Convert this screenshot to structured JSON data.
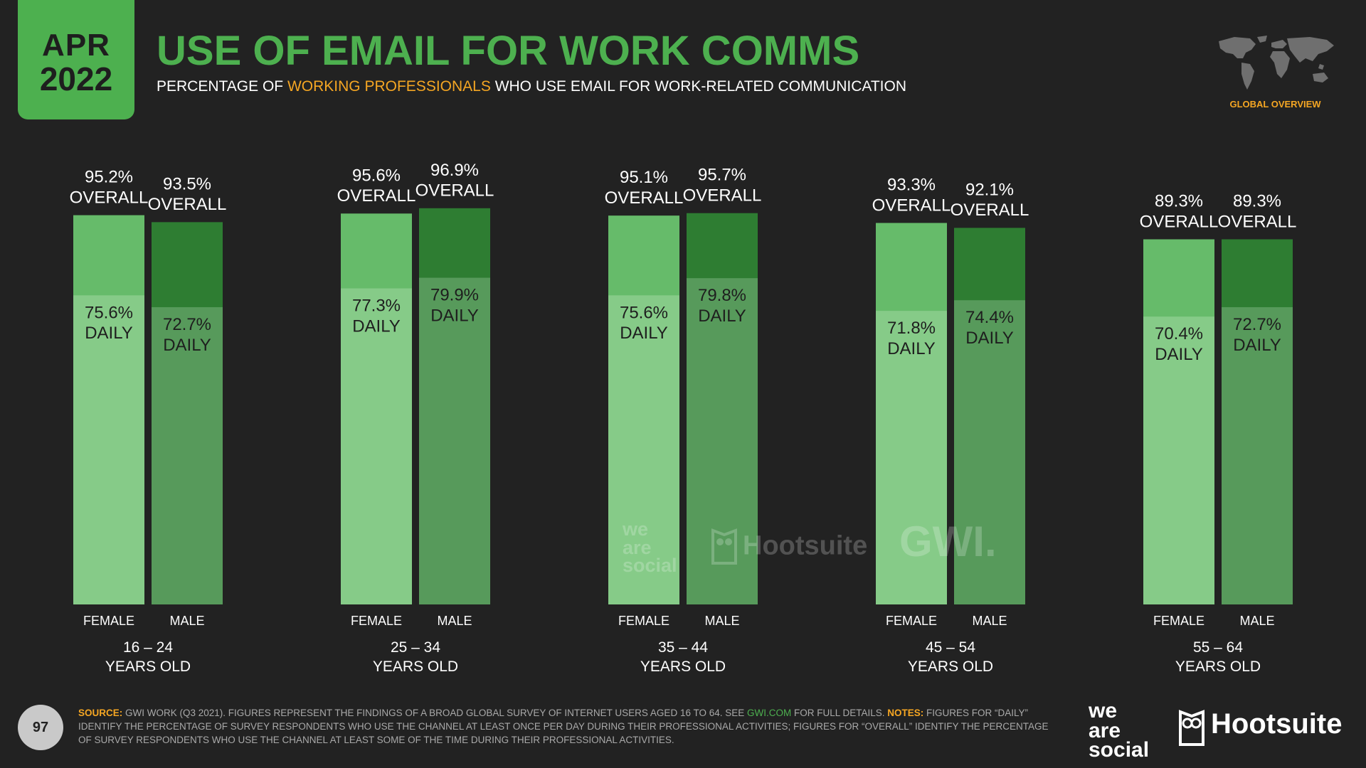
{
  "header": {
    "date_month": "APR",
    "date_year": "2022",
    "title": "USE OF EMAIL FOR WORK COMMS",
    "subtitle_pre": "PERCENTAGE OF ",
    "subtitle_highlight": "WORKING PROFESSIONALS",
    "subtitle_post": " WHO USE EMAIL FOR WORK-RELATED COMMUNICATION",
    "region": "GLOBAL OVERVIEW"
  },
  "colors": {
    "background": "#222222",
    "accent_green": "#4db04f",
    "highlight_orange": "#f5a623",
    "female_overall": "#66bb6a",
    "female_daily": "#86cb88",
    "male_overall": "#2e7d32",
    "male_daily": "#579a5b"
  },
  "chart_data": {
    "type": "bar",
    "ylim": [
      0,
      100
    ],
    "categories": [
      "16 – 24",
      "25 – 34",
      "35 – 44",
      "45 – 54",
      "55 – 64"
    ],
    "category_suffix": "YEARS OLD",
    "bar_labels": [
      "FEMALE",
      "MALE"
    ],
    "overall_suffix": "OVERALL",
    "daily_suffix": "DAILY",
    "series": [
      {
        "name": "FEMALE",
        "overall": [
          95.2,
          95.6,
          95.1,
          93.3,
          89.3
        ],
        "daily": [
          75.6,
          77.3,
          75.6,
          71.8,
          70.4
        ]
      },
      {
        "name": "MALE",
        "overall": [
          93.5,
          96.9,
          95.7,
          92.1,
          89.3
        ],
        "daily": [
          72.7,
          79.9,
          79.8,
          74.4,
          72.7
        ]
      }
    ]
  },
  "watermarks": {
    "we_are_social": [
      "we",
      "are",
      "social"
    ],
    "hootsuite": "Hootsuite",
    "gwi": "GWI."
  },
  "footer": {
    "page_number": "97",
    "source_label": "SOURCE:",
    "source_text": " GWI WORK (Q3 2021). FIGURES REPRESENT THE FINDINGS OF A BROAD GLOBAL SURVEY OF INTERNET USERS AGED 16 TO 64. SEE ",
    "source_link": "GWI.COM",
    "source_after": " FOR FULL DETAILS. ",
    "notes_label": "NOTES:",
    "notes_text": " FIGURES FOR “DAILY” IDENTIFY THE PERCENTAGE OF SURVEY RESPONDENTS WHO USE THE CHANNEL AT LEAST ONCE PER DAY DURING THEIR PROFESSIONAL ACTIVITIES; FIGURES FOR “OVERALL” IDENTIFY THE PERCENTAGE OF SURVEY RESPONDENTS WHO USE THE CHANNEL AT LEAST SOME OF THE TIME DURING THEIR PROFESSIONAL ACTIVITIES.",
    "brand_we_are_social": [
      "we",
      "are",
      "social"
    ],
    "brand_hootsuite": "Hootsuite"
  }
}
